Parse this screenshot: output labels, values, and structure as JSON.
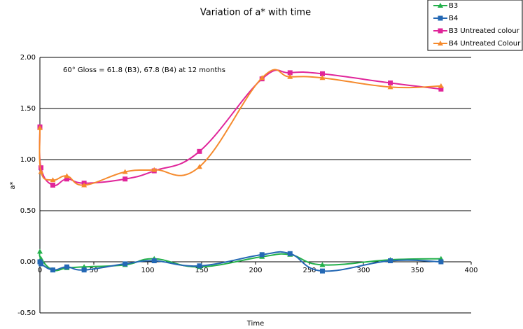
{
  "chart_data": {
    "type": "line",
    "title": "Variation of a* with time",
    "annotation": "60° Gloss = 61.8 (B3), 67.8 (B4) at 12 months",
    "xlabel": "Time",
    "ylabel": "a*",
    "x": [
      0,
      1,
      12,
      25,
      41,
      79,
      106,
      148,
      206,
      232,
      262,
      325,
      372
    ],
    "series": [
      {
        "name": "B3",
        "color": "#22b04a",
        "marker": "triangle",
        "values": [
          0.1,
          0.03,
          -0.08,
          -0.06,
          -0.05,
          -0.03,
          0.03,
          -0.05,
          0.05,
          0.07,
          -0.03,
          0.02,
          0.03
        ]
      },
      {
        "name": "B4",
        "color": "#2468b4",
        "marker": "square",
        "values": [
          0.0,
          -0.02,
          -0.08,
          -0.05,
          -0.08,
          -0.02,
          0.01,
          -0.04,
          0.07,
          0.08,
          -0.09,
          0.01,
          0.0
        ]
      },
      {
        "name": "B3 Untreated colour",
        "color": "#e0259a",
        "marker": "square",
        "values": [
          1.32,
          0.92,
          0.75,
          0.81,
          0.77,
          0.81,
          0.89,
          1.08,
          1.79,
          1.85,
          1.84,
          1.75,
          1.69
        ]
      },
      {
        "name": "B4 Untreated Colour",
        "color": "#f58a2d",
        "marker": "triangle",
        "values": [
          1.31,
          0.88,
          0.8,
          0.84,
          0.75,
          0.88,
          0.9,
          0.93,
          1.8,
          1.81,
          1.8,
          1.71,
          1.72
        ]
      }
    ],
    "xlim": [
      0,
      400
    ],
    "xticks": [
      0,
      50,
      100,
      150,
      200,
      250,
      300,
      350,
      400
    ],
    "ylim": [
      -0.5,
      2
    ],
    "yticks": [
      {
        "value": -0.5,
        "label": "-0.50"
      },
      {
        "value": 0,
        "label": "0.00"
      },
      {
        "value": 0.5,
        "label": "0.50"
      },
      {
        "value": 1,
        "label": "1.00"
      },
      {
        "value": 1.5,
        "label": "1.50"
      },
      {
        "value": 2,
        "label": "2.00"
      }
    ],
    "grid": true,
    "legend": "top-right"
  }
}
